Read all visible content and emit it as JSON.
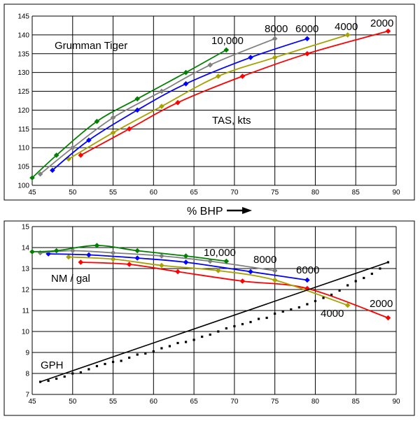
{
  "chart_data": [
    {
      "type": "line",
      "title": "Grumman Tiger",
      "annotation": "TAS, kts",
      "xlim": [
        45,
        90
      ],
      "ylim": [
        100,
        145
      ],
      "x_ticks": [
        "45",
        "50",
        "55",
        "60",
        "65",
        "70",
        "75",
        "80",
        "85",
        "90"
      ],
      "y_ticks": [
        "100",
        "105",
        "110",
        "115",
        "120",
        "125",
        "130",
        "135",
        "140",
        "145"
      ],
      "grid": true,
      "series": [
        {
          "name": "2000",
          "color": "#ff0000",
          "points": [
            [
              51,
              108
            ],
            [
              57,
              115
            ],
            [
              63,
              122
            ],
            [
              71,
              129
            ],
            [
              79,
              135
            ],
            [
              89,
              141
            ]
          ]
        },
        {
          "name": "4000",
          "color": "#a8a200",
          "points": [
            [
              49.5,
              107
            ],
            [
              55,
              114
            ],
            [
              61,
              121
            ],
            [
              68,
              129
            ],
            [
              75,
              134
            ],
            [
              84,
              140
            ]
          ]
        },
        {
          "name": "6000",
          "color": "#0000ff",
          "points": [
            [
              47.5,
              104
            ],
            [
              52,
              112
            ],
            [
              58,
              120
            ],
            [
              64,
              127
            ],
            [
              72,
              134
            ],
            [
              79,
              139
            ]
          ]
        },
        {
          "name": "8000",
          "color": "#808080",
          "points": [
            [
              46,
              103
            ],
            [
              50,
              110
            ],
            [
              55,
              118
            ],
            [
              61,
              125
            ],
            [
              67,
              132
            ],
            [
              75,
              139
            ]
          ]
        },
        {
          "name": "10,000",
          "color": "#008000",
          "points": [
            [
              45,
              102
            ],
            [
              48,
              108
            ],
            [
              53,
              117
            ],
            [
              58,
              123
            ],
            [
              64,
              130
            ],
            [
              69,
              136
            ]
          ]
        }
      ]
    },
    {
      "type": "line",
      "xlabel": "% BHP",
      "xlim": [
        45,
        90
      ],
      "ylim": [
        7,
        15
      ],
      "x_ticks": [
        "45",
        "50",
        "55",
        "60",
        "65",
        "70",
        "75",
        "80",
        "85",
        "90"
      ],
      "y_ticks": [
        "7",
        "8",
        "9",
        "10",
        "11",
        "12",
        "13",
        "14",
        "15"
      ],
      "grid": true,
      "annotations": [
        "NM / gal",
        "GPH"
      ],
      "series": [
        {
          "name": "2000",
          "color": "#ff0000",
          "points": [
            [
              51,
              13.3
            ],
            [
              57,
              13.2
            ],
            [
              63,
              12.85
            ],
            [
              71,
              12.4
            ],
            [
              79,
              12.05
            ],
            [
              89,
              10.65
            ]
          ]
        },
        {
          "name": "4000",
          "color": "#a8a200",
          "points": [
            [
              49.5,
              13.55
            ],
            [
              55,
              13.45
            ],
            [
              61,
              13.15
            ],
            [
              68,
              12.9
            ],
            [
              75,
              12.45
            ],
            [
              84,
              11.25
            ]
          ]
        },
        {
          "name": "6000",
          "color": "#0000ff",
          "points": [
            [
              47,
              13.7
            ],
            [
              52,
              13.65
            ],
            [
              58,
              13.5
            ],
            [
              64,
              13.3
            ],
            [
              72,
              12.85
            ],
            [
              79,
              12.45
            ]
          ]
        },
        {
          "name": "8000",
          "color": "#808080",
          "points": [
            [
              46,
              13.75
            ],
            [
              50,
              13.85
            ],
            [
              55,
              13.75
            ],
            [
              61,
              13.6
            ],
            [
              67,
              13.35
            ],
            [
              75,
              12.9
            ]
          ]
        },
        {
          "name": "10,000",
          "color": "#008000",
          "points": [
            [
              45,
              13.8
            ],
            [
              48,
              13.85
            ],
            [
              53,
              14.1
            ],
            [
              58,
              13.85
            ],
            [
              64,
              13.6
            ],
            [
              69,
              13.35
            ]
          ]
        },
        {
          "name": "GPH",
          "color": "#000000",
          "points": [
            [
              46,
              7.6
            ],
            [
              47,
              7.65
            ],
            [
              48,
              7.75
            ],
            [
              49,
              7.85
            ],
            [
              50,
              8.0
            ],
            [
              51,
              8.05
            ],
            [
              52,
              8.2
            ],
            [
              53,
              8.35
            ],
            [
              54,
              8.45
            ],
            [
              55,
              8.55
            ],
            [
              56,
              8.6
            ],
            [
              57,
              8.75
            ],
            [
              58,
              8.9
            ],
            [
              59,
              8.95
            ],
            [
              60,
              9.05
            ],
            [
              61,
              9.2
            ],
            [
              62,
              9.3
            ],
            [
              63,
              9.45
            ],
            [
              64,
              9.5
            ],
            [
              65,
              9.6
            ],
            [
              66,
              9.75
            ],
            [
              67,
              9.85
            ],
            [
              68,
              10.0
            ],
            [
              69,
              10.15
            ],
            [
              70,
              10.25
            ],
            [
              71,
              10.35
            ],
            [
              72,
              10.45
            ],
            [
              73,
              10.6
            ],
            [
              74,
              10.65
            ],
            [
              75,
              10.85
            ],
            [
              76,
              10.95
            ],
            [
              77,
              11.05
            ],
            [
              78,
              11.15
            ],
            [
              79,
              11.3
            ],
            [
              80,
              11.45
            ],
            [
              81,
              11.6
            ],
            [
              82,
              11.75
            ],
            [
              83,
              11.95
            ],
            [
              84,
              12.2
            ],
            [
              85,
              12.4
            ],
            [
              86,
              12.55
            ],
            [
              87,
              12.75
            ],
            [
              88,
              13.0
            ],
            [
              89,
              13.3
            ]
          ]
        }
      ]
    }
  ],
  "labels": {
    "top_title": "Grumman Tiger",
    "top_tas": "TAS, kts",
    "top_s2000": "2000",
    "top_s4000": "4000",
    "top_s6000": "6000",
    "top_s8000": "8000",
    "top_s10000": "10,000",
    "bhp": "% BHP",
    "bot_nm": "NM / gal",
    "bot_gph": "GPH",
    "bot_s2000": "2000",
    "bot_s4000": "4000",
    "bot_s6000": "6000",
    "bot_s8000": "8000",
    "bot_s10000": "10,000"
  }
}
